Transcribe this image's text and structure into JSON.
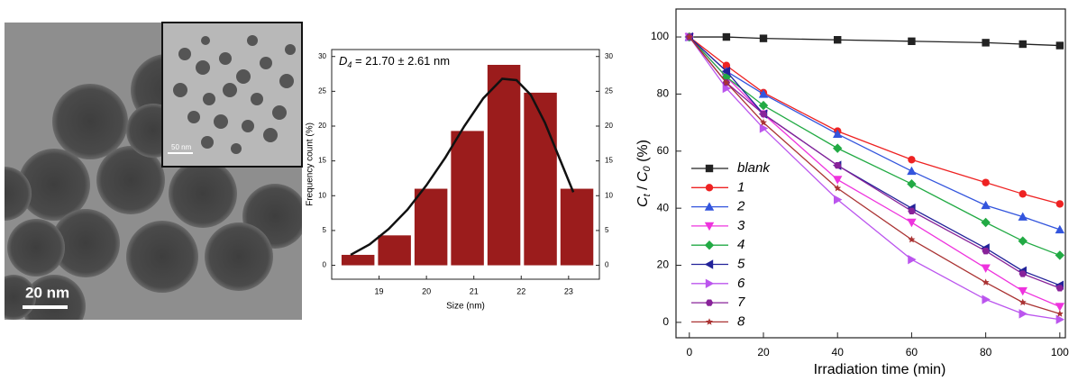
{
  "image": {
    "scale_bar": "20 nm",
    "inset_scale_bar": "50 nm"
  },
  "chart_data": [
    {
      "type": "histogram",
      "annotation": {
        "symbol": "D",
        "subscript": "4",
        "text": " = 21.70 ± 2.61 nm"
      },
      "x_label": "Size (nm)",
      "y_label": "Frequency count (%)",
      "bins": [
        18.17,
        18.94,
        19.71,
        20.48,
        21.25,
        22.02,
        22.79,
        23.56
      ],
      "values": [
        1.5,
        4.3,
        11,
        19.3,
        28.8,
        24.8,
        11
      ],
      "color": "#9b1c1c",
      "fit": {
        "color": "#111111",
        "x": [
          18.4,
          18.8,
          19.2,
          19.6,
          20.0,
          20.4,
          20.8,
          21.2,
          21.6,
          21.9,
          22.2,
          22.5,
          22.8,
          23.1
        ],
        "values": [
          1.5,
          3,
          5.2,
          8,
          11.5,
          15.5,
          20,
          24,
          26.8,
          26.6,
          24.5,
          20.5,
          15.5,
          10.5
        ]
      },
      "xlim": [
        18.0,
        23.65
      ],
      "xticks": [
        19,
        20,
        21,
        22,
        23
      ],
      "ylim": [
        -2,
        31
      ],
      "yticks": [
        0,
        5,
        10,
        15,
        20,
        25,
        30
      ],
      "y2lim": [
        -2,
        31
      ],
      "y2ticks": [
        0,
        5,
        10,
        15,
        20,
        25,
        30
      ]
    },
    {
      "type": "line",
      "x_label": "Irradiation time (min)",
      "y_label": {
        "c": "C",
        "t": "t",
        "sep": " / ",
        "c0": "C",
        "zero": "0",
        "unit": " (%)"
      },
      "x": [
        0,
        10,
        20,
        40,
        60,
        80,
        90,
        100
      ],
      "series": [
        {
          "name": "blank",
          "color": "#222222",
          "marker": "square",
          "values": [
            100,
            100,
            99.5,
            99,
            98.5,
            98,
            97.5,
            97
          ]
        },
        {
          "name": "1",
          "color": "#ee2222",
          "marker": "circle",
          "values": [
            100,
            90,
            80.5,
            67,
            57,
            49,
            45,
            41.5
          ]
        },
        {
          "name": "2",
          "color": "#3355dd",
          "marker": "up",
          "values": [
            100,
            88,
            80,
            66,
            53,
            41,
            37,
            32.5
          ]
        },
        {
          "name": "3",
          "color": "#ee33dd",
          "marker": "down",
          "values": [
            100,
            86,
            73,
            50,
            35,
            19,
            11,
            5.5
          ]
        },
        {
          "name": "4",
          "color": "#22aa44",
          "marker": "diamond",
          "values": [
            100,
            86,
            76,
            61,
            48.5,
            35,
            28.5,
            23.5
          ]
        },
        {
          "name": "5",
          "color": "#222299",
          "marker": "left",
          "values": [
            100,
            88,
            73,
            55,
            40,
            26,
            18,
            13
          ]
        },
        {
          "name": "6",
          "color": "#bb55ee",
          "marker": "right",
          "values": [
            100,
            82,
            68,
            43,
            22,
            8,
            3,
            1
          ]
        },
        {
          "name": "7",
          "color": "#882299",
          "marker": "hexagon",
          "values": [
            100,
            84,
            73,
            55,
            39,
            25,
            17,
            12
          ]
        },
        {
          "name": "8",
          "color": "#aa3333",
          "marker": "star",
          "values": [
            100,
            84,
            70,
            47,
            29,
            14,
            7,
            3
          ]
        }
      ],
      "xlim": [
        -3.6,
        101.5
      ],
      "xticks": [
        0,
        20,
        40,
        60,
        80,
        100
      ],
      "ylim": [
        -5.4,
        109.8
      ],
      "yticks": [
        0,
        20,
        40,
        60,
        80,
        100
      ]
    }
  ]
}
